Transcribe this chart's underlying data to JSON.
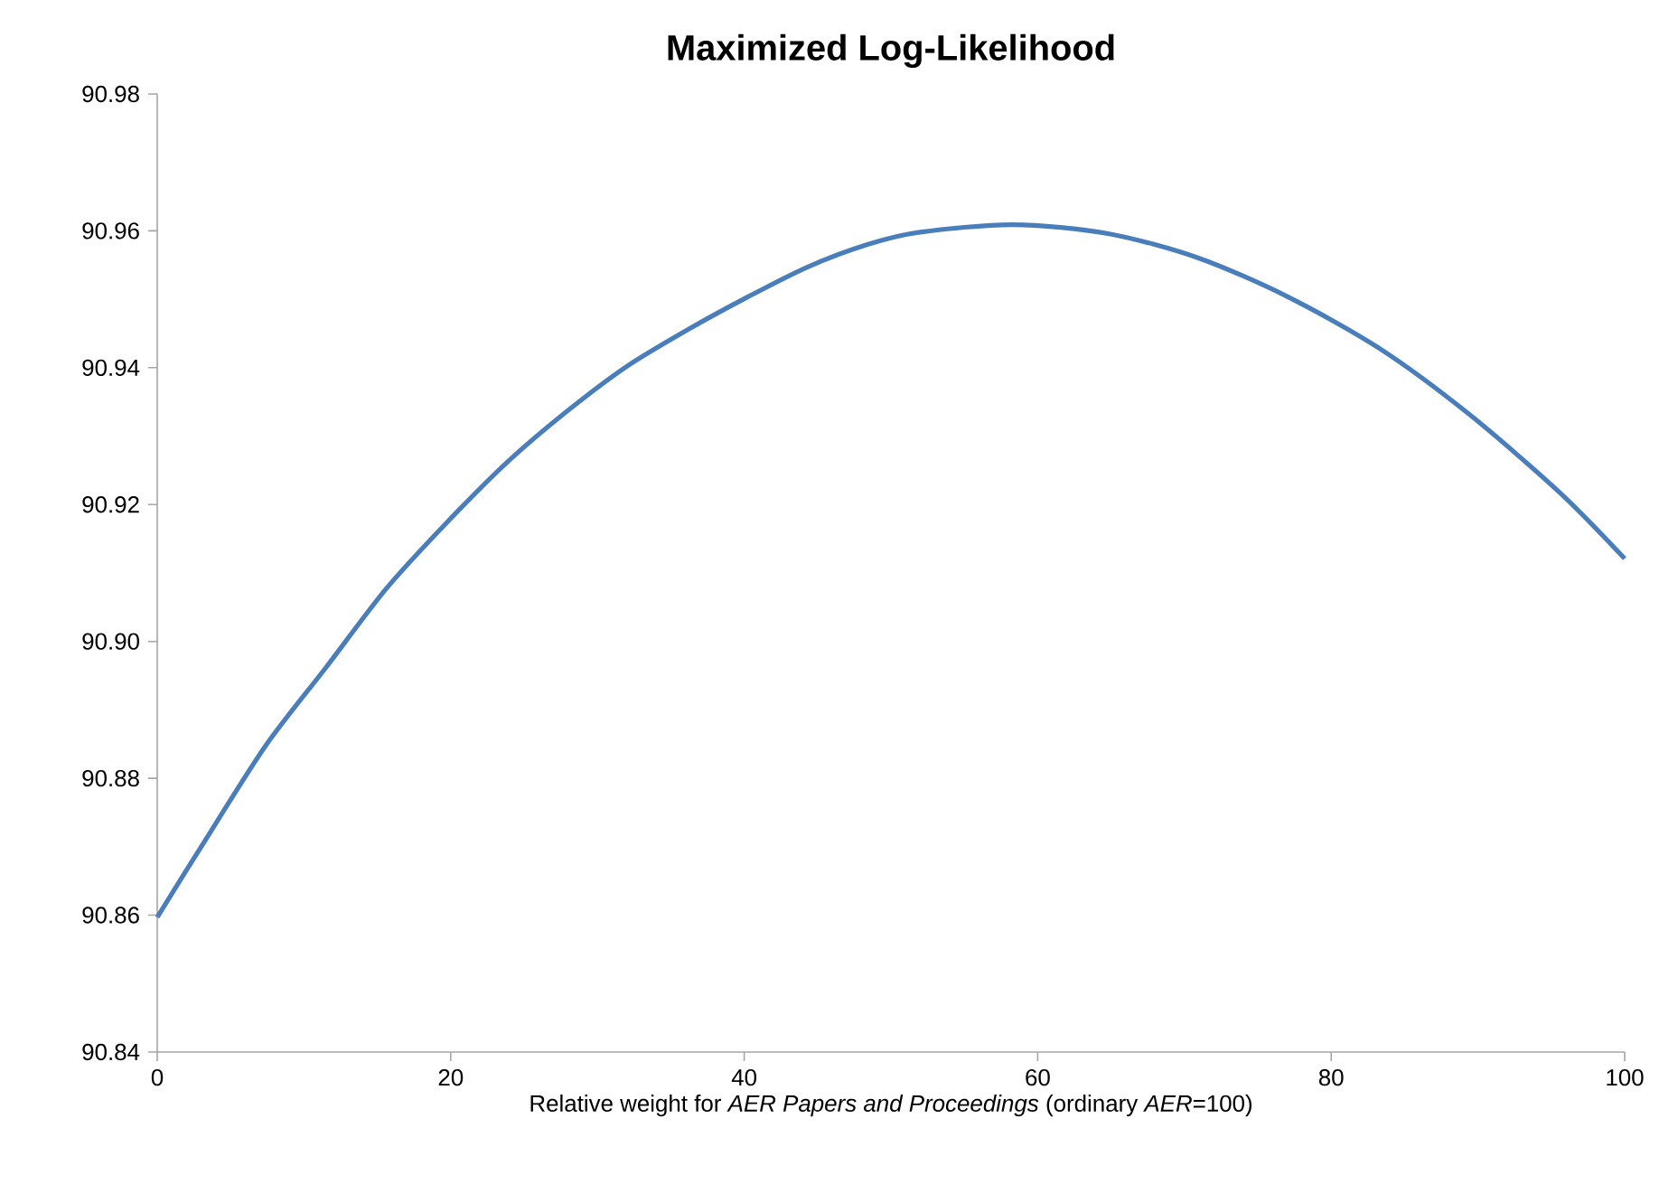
{
  "chart_data": {
    "type": "line",
    "title": "Maximized Log-Likelihood",
    "xlabel": "Relative weight for *AER Papers and Proceedings* (ordinary *AER*=100)",
    "series": [
      {
        "color": "#4a7ebb",
        "x": [
          0,
          3.2,
          7.4,
          11.5,
          15.6,
          19.7,
          23.8,
          27.9,
          32,
          36.1,
          40.2,
          44.3,
          48.4,
          52,
          58.3,
          64.8,
          71,
          77.1,
          83.3,
          89.4,
          95.6,
          100
        ],
        "values": [
          90.8597,
          90.8707,
          90.8848,
          90.8962,
          90.9077,
          90.9173,
          90.9261,
          90.9336,
          90.9402,
          90.9455,
          90.9503,
          90.9547,
          90.958,
          90.9598,
          90.9609,
          90.9596,
          90.956,
          90.9503,
          90.9428,
          90.9332,
          90.9217,
          90.9121
        ]
      }
    ],
    "xlim": [
      0,
      100
    ],
    "xticks": [
      0,
      20,
      40,
      60,
      80,
      100
    ],
    "ylim": [
      90.84,
      90.98
    ],
    "yticks": [
      {
        "value": 90.84,
        "label": "90.84"
      },
      {
        "value": 90.86,
        "label": "90.86"
      },
      {
        "value": 90.88,
        "label": "90.88"
      },
      {
        "value": 90.9,
        "label": "90.90"
      },
      {
        "value": 90.92,
        "label": "90.92"
      },
      {
        "value": 90.94,
        "label": "90.94"
      },
      {
        "value": 90.96,
        "label": "90.96"
      },
      {
        "value": 90.98,
        "label": "90.98"
      }
    ],
    "grid": false,
    "marker": "none",
    "line_style": "solid"
  }
}
